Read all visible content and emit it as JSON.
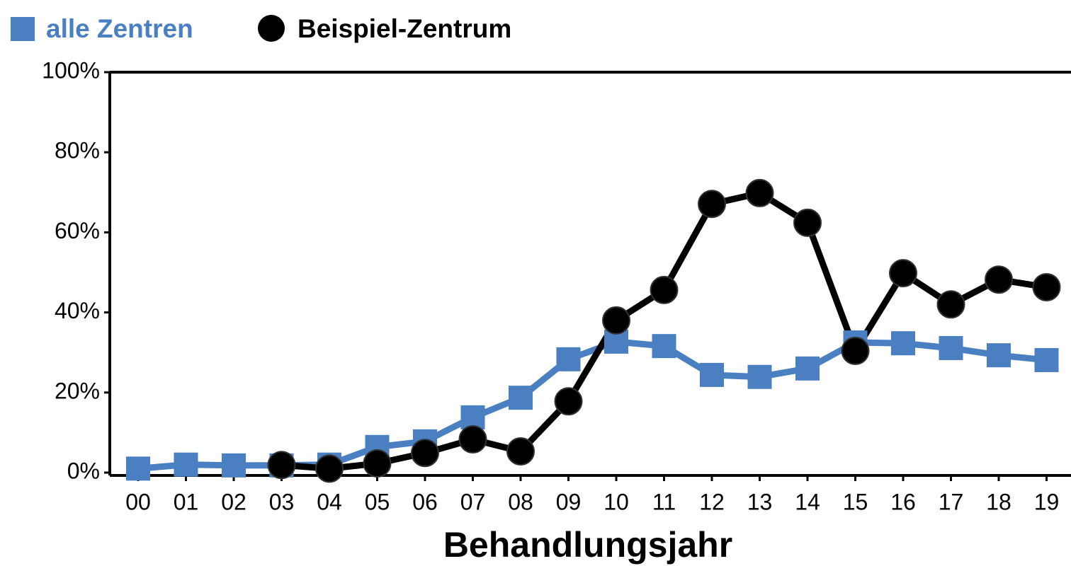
{
  "chart_data": {
    "type": "line",
    "xlabel": "Behandlungsjahr",
    "categories": [
      "00",
      "01",
      "02",
      "03",
      "04",
      "05",
      "06",
      "07",
      "08",
      "09",
      "10",
      "11",
      "12",
      "13",
      "14",
      "15",
      "16",
      "17",
      "18",
      "19"
    ],
    "series": [
      {
        "name": "alle Zentren",
        "color": "#4a7fc1",
        "marker": "square",
        "values": [
          1,
          2,
          1.8,
          1.8,
          2,
          6.4,
          7.8,
          13.8,
          18.7,
          28.3,
          32.7,
          31.6,
          24.4,
          23.9,
          26,
          32.5,
          32.3,
          31.1,
          29.3,
          28.1
        ]
      },
      {
        "name": "Beispiel-Zentrum",
        "color": "#000000",
        "marker": "circle",
        "values": [
          null,
          null,
          null,
          1.9,
          1,
          2.3,
          4.9,
          8.3,
          5.3,
          17.8,
          38,
          45.6,
          67.1,
          69.8,
          62.4,
          30.4,
          49.8,
          42,
          48.2,
          46.3
        ]
      }
    ],
    "ylim": [
      0,
      100
    ],
    "yticks": [
      {
        "value": 0,
        "label": "0%"
      },
      {
        "value": 20,
        "label": "20%"
      },
      {
        "value": 40,
        "label": "40%"
      },
      {
        "value": 60,
        "label": "60%"
      },
      {
        "value": 80,
        "label": "80%"
      },
      {
        "value": 100,
        "label": "100%"
      }
    ]
  }
}
